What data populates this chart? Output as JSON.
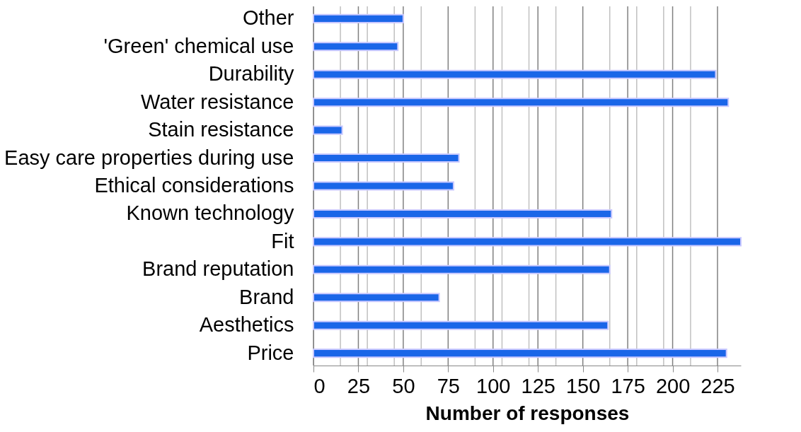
{
  "chart_data": {
    "type": "bar",
    "orientation": "horizontal",
    "categories": [
      "Other",
      "'Green' chemical use",
      "Durability",
      "Water resistance",
      "Stain resistance",
      "Easy care properties during use",
      "Ethical considerations",
      "Known technology",
      "Fit",
      "Brand reputation",
      "Brand",
      "Aesthetics",
      "Price"
    ],
    "values": [
      50,
      47,
      224,
      231,
      16,
      81,
      78,
      166,
      238,
      165,
      70,
      164,
      230
    ],
    "color": "#1a66e8",
    "xlabel": "Number of responses",
    "xlim": [
      0,
      238
    ],
    "xticks": [
      0,
      {
        "value": 15,
        "label": null
      },
      25,
      {
        "value": 30,
        "label": null
      },
      {
        "value": 45,
        "label": null
      },
      50,
      {
        "value": 60,
        "label": null
      },
      75,
      {
        "value": 90,
        "label": null
      },
      100,
      {
        "value": 105,
        "label": null
      },
      {
        "value": 120,
        "label": null
      },
      125,
      {
        "value": 135,
        "label": null
      },
      150,
      {
        "value": 165,
        "label": null
      },
      175,
      {
        "value": 180,
        "label": null
      },
      {
        "value": 195,
        "label": null
      },
      200,
      {
        "value": 210,
        "label": null
      },
      225
    ],
    "grid": true
  }
}
